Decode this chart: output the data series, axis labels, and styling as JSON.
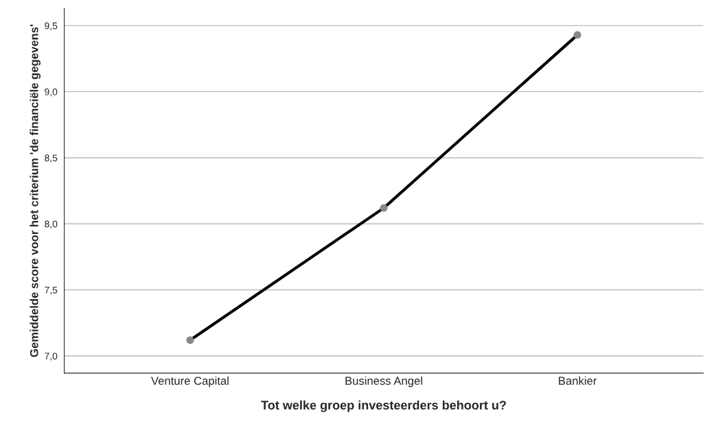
{
  "chart_data": {
    "type": "line",
    "xlabel": "Tot welke groep investeerders behoort u?",
    "ylabel": "Gemiddelde score voor het criterium 'de financiële gegevens'",
    "categories": [
      "Venture Capital",
      "Business Angel",
      "Bankier"
    ],
    "series": [
      {
        "color": "#000000",
        "values": [
          7.12,
          8.12,
          9.43
        ]
      }
    ],
    "ylim": [
      6.87,
      9.63
    ],
    "yticks": [
      {
        "value": 7.0,
        "label": "7,0"
      },
      {
        "value": 7.5,
        "label": "7,5"
      },
      {
        "value": 8.0,
        "label": "8,0"
      },
      {
        "value": 8.5,
        "label": "8,5"
      },
      {
        "value": 9.0,
        "label": "9,0"
      },
      {
        "value": 9.5,
        "label": "9,5"
      }
    ],
    "grid": "y",
    "marker": "circle",
    "line_style": "solid"
  }
}
